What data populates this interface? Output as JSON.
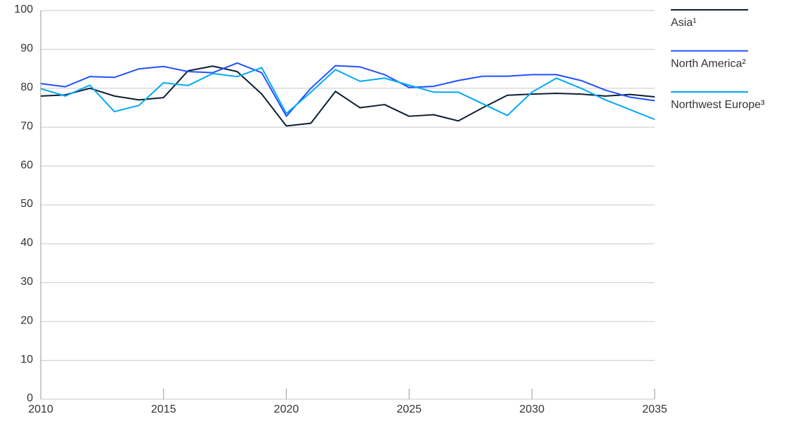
{
  "chart_data": {
    "type": "line",
    "x": [
      2010,
      2011,
      2012,
      2013,
      2014,
      2015,
      2016,
      2017,
      2018,
      2019,
      2020,
      2021,
      2022,
      2023,
      2024,
      2025,
      2026,
      2027,
      2028,
      2029,
      2030,
      2031,
      2032,
      2033,
      2034,
      2035
    ],
    "series": [
      {
        "name": "Asia¹",
        "color": "#0b1f33",
        "values": [
          78,
          78.3,
          80,
          78,
          77,
          77.6,
          84.5,
          85.7,
          84.3,
          78.5,
          70.3,
          71,
          79.2,
          75,
          75.8,
          72.8,
          73.2,
          71.6,
          75,
          78.2,
          78.5,
          78.7,
          78.5,
          78,
          78.4,
          77.8
        ]
      },
      {
        "name": "North America²",
        "color": "#2251ff",
        "values": [
          81.2,
          80.4,
          83,
          82.8,
          85,
          85.6,
          84.3,
          84,
          86.5,
          84,
          72.8,
          80,
          85.8,
          85.5,
          83.5,
          80.2,
          80.5,
          82,
          83.1,
          83.1,
          83.5,
          83.5,
          82,
          79.5,
          77.7,
          76.8
        ]
      },
      {
        "name": "Northwest Europe³",
        "color": "#00a9f4",
        "values": [
          79.9,
          78,
          80.8,
          74,
          75.6,
          81.4,
          80.7,
          83.8,
          83,
          85.3,
          73.5,
          79,
          84.8,
          81.8,
          82.6,
          80.8,
          79,
          79,
          76,
          73,
          79,
          82.6,
          80,
          77,
          74.5,
          72
        ]
      }
    ],
    "xlim": [
      2010,
      2035
    ],
    "xticks": [
      2010,
      2015,
      2020,
      2025,
      2030,
      2035
    ],
    "ylim": [
      0,
      100
    ],
    "yticks": [
      0,
      10,
      20,
      30,
      40,
      50,
      60,
      70,
      80,
      90,
      100
    ],
    "grid": true,
    "legend": "right"
  }
}
